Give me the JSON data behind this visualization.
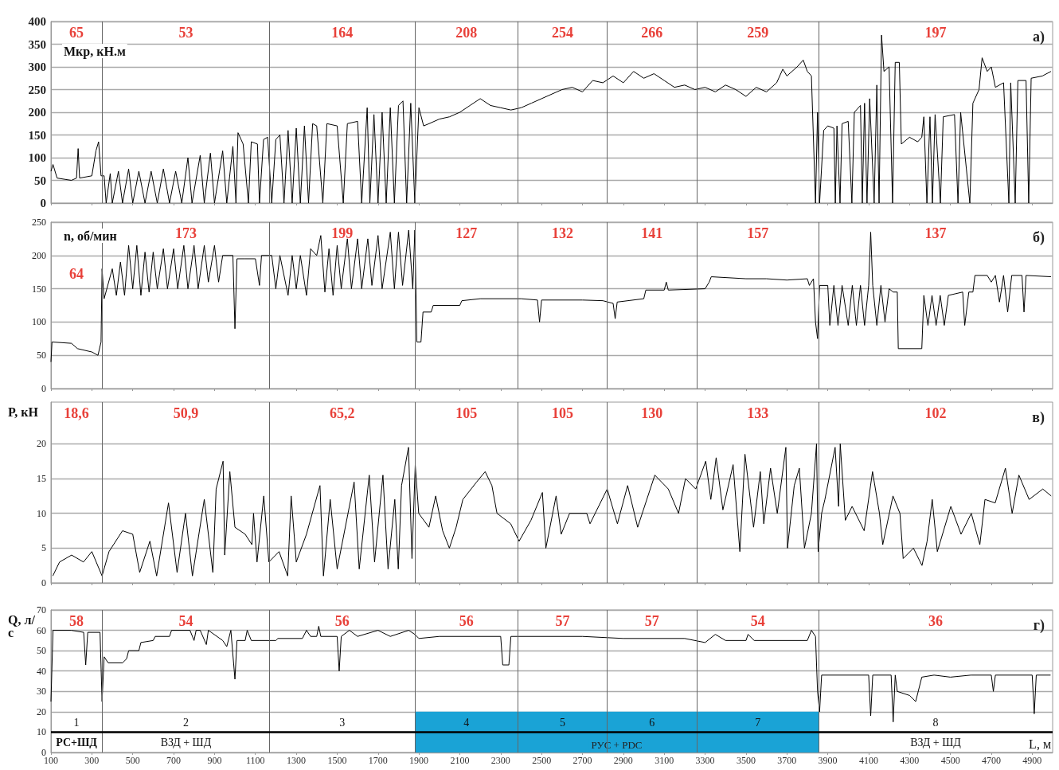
{
  "chart_data": [
    {
      "type": "line",
      "ylabel": "Мкр, кН.м",
      "xlim": [
        100,
        5000
      ],
      "xticks": [
        100,
        300,
        500,
        700,
        900,
        1100,
        1300,
        1500,
        1700,
        1900,
        2100,
        2300,
        2500,
        2700,
        2900,
        3100,
        3300,
        3500,
        3700,
        3900,
        4100,
        4300,
        4500,
        4700,
        4900
      ],
      "ylim": [
        0,
        400
      ],
      "yticks": [
        0,
        50,
        100,
        150,
        200,
        250,
        300,
        350,
        400
      ],
      "grid": "y",
      "tick_labels": "y",
      "x": [
        100,
        110,
        130,
        200,
        225,
        233,
        240,
        300,
        320,
        333,
        345,
        360,
        370,
        390,
        400,
        430,
        450,
        480,
        500,
        530,
        560,
        590,
        620,
        650,
        680,
        710,
        740,
        770,
        790,
        830,
        850,
        880,
        900,
        940,
        960,
        990,
        1005,
        1015,
        1040,
        1066,
        1080,
        1110,
        1120,
        1140,
        1160,
        1180,
        1200,
        1220,
        1240,
        1260,
        1280,
        1300,
        1320,
        1340,
        1360,
        1380,
        1400,
        1430,
        1450,
        1500,
        1530,
        1550,
        1600,
        1620,
        1647,
        1660,
        1680,
        1700,
        1720,
        1740,
        1760,
        1780,
        1800,
        1822,
        1840,
        1860,
        1880,
        1900,
        1923,
        1950,
        2000,
        2050,
        2100,
        2150,
        2200,
        2250,
        2300,
        2350,
        2400,
        2450,
        2500,
        2550,
        2600,
        2650,
        2700,
        2750,
        2800,
        2850,
        2900,
        2950,
        3000,
        3050,
        3100,
        3150,
        3200,
        3250,
        3300,
        3350,
        3400,
        3450,
        3500,
        3550,
        3600,
        3650,
        3680,
        3700,
        3750,
        3780,
        3800,
        3820,
        3840,
        3850,
        3860,
        3880,
        3900,
        3930,
        3937,
        3945,
        3960,
        3970,
        4000,
        4018,
        4030,
        4060,
        4069,
        4080,
        4092,
        4105,
        4127,
        4140,
        4151,
        4163,
        4175,
        4200,
        4217,
        4230,
        4250,
        4260,
        4300,
        4340,
        4360,
        4370,
        4385,
        4400,
        4412,
        4425,
        4451,
        4465,
        4520,
        4537,
        4550,
        4595,
        4610,
        4640,
        4655,
        4680,
        4700,
        4720,
        4760,
        4786,
        4795,
        4817,
        4830,
        4870,
        4883,
        4895,
        4950,
        4992
      ],
      "series": [
        {
          "color": "#000000",
          "values": [
            70,
            85,
            55,
            50,
            55,
            120,
            55,
            60,
            115,
            135,
            60,
            60,
            0,
            65,
            0,
            70,
            0,
            75,
            0,
            70,
            0,
            70,
            0,
            75,
            0,
            70,
            0,
            100,
            0,
            105,
            0,
            110,
            0,
            115,
            0,
            125,
            0,
            155,
            130,
            0,
            135,
            130,
            0,
            140,
            145,
            0,
            140,
            150,
            0,
            160,
            0,
            165,
            0,
            170,
            0,
            175,
            170,
            0,
            175,
            170,
            0,
            175,
            180,
            0,
            210,
            0,
            195,
            0,
            200,
            0,
            210,
            0,
            215,
            225,
            0,
            220,
            0,
            210,
            170,
            175,
            185,
            190,
            200,
            215,
            230,
            215,
            210,
            205,
            210,
            220,
            230,
            240,
            250,
            255,
            245,
            270,
            265,
            280,
            265,
            290,
            275,
            285,
            270,
            255,
            260,
            250,
            255,
            245,
            260,
            250,
            235,
            255,
            245,
            265,
            295,
            280,
            300,
            315,
            290,
            280,
            0,
            200,
            0,
            160,
            170,
            165,
            0,
            170,
            0,
            175,
            180,
            0,
            200,
            215,
            0,
            220,
            0,
            230,
            0,
            260,
            0,
            370,
            290,
            300,
            0,
            310,
            310,
            130,
            145,
            135,
            145,
            190,
            0,
            190,
            0,
            195,
            0,
            190,
            195,
            0,
            200,
            0,
            220,
            250,
            320,
            290,
            300,
            255,
            265,
            0,
            265,
            0,
            270,
            270,
            0,
            275,
            280,
            290
          ]
        }
      ],
      "ref_lines": [
        {
          "axis": "x",
          "value": 350
        },
        {
          "axis": "x",
          "value": 1170
        },
        {
          "axis": "x",
          "value": 1880
        },
        {
          "axis": "x",
          "value": 2385
        },
        {
          "axis": "x",
          "value": 2820
        },
        {
          "axis": "x",
          "value": 3260
        },
        {
          "axis": "x",
          "value": 3855
        }
      ],
      "annotations": [
        "а)",
        "65",
        "53",
        "164",
        "208",
        "254",
        "266",
        "259",
        "197"
      ]
    },
    {
      "type": "line",
      "ylabel": "n, об/мин",
      "xlim": [
        100,
        5000
      ],
      "xticks": [
        100,
        300,
        500,
        700,
        900,
        1100,
        1300,
        1500,
        1700,
        1900,
        2100,
        2300,
        2500,
        2700,
        2900,
        3100,
        3300,
        3500,
        3700,
        3900,
        4100,
        4300,
        4500,
        4700,
        4900
      ],
      "ylim": [
        0,
        250
      ],
      "yticks": [
        0,
        50,
        100,
        150,
        200,
        250
      ],
      "grid": "y",
      "tick_labels": "y",
      "x": [
        100,
        105,
        200,
        230,
        300,
        330,
        345,
        350,
        360,
        400,
        420,
        440,
        460,
        480,
        500,
        520,
        540,
        560,
        580,
        600,
        620,
        650,
        670,
        700,
        720,
        750,
        770,
        800,
        820,
        850,
        870,
        900,
        920,
        940,
        990,
        1000,
        1010,
        1050,
        1100,
        1120,
        1130,
        1180,
        1200,
        1220,
        1260,
        1280,
        1300,
        1320,
        1350,
        1370,
        1400,
        1420,
        1440,
        1460,
        1480,
        1500,
        1520,
        1550,
        1570,
        1600,
        1620,
        1650,
        1670,
        1700,
        1720,
        1760,
        1780,
        1800,
        1820,
        1850,
        1870,
        1880,
        1890,
        1910,
        1920,
        1960,
        1970,
        2100,
        2110,
        2200,
        2400,
        2480,
        2490,
        2500,
        2700,
        2800,
        2850,
        2860,
        2870,
        3000,
        3010,
        3100,
        3110,
        3120,
        3300,
        3320,
        3330,
        3500,
        3600,
        3700,
        3800,
        3810,
        3830,
        3840,
        3850,
        3860,
        3900,
        3910,
        3930,
        3950,
        3970,
        4000,
        4020,
        4040,
        4060,
        4080,
        4100,
        4110,
        4120,
        4140,
        4160,
        4180,
        4200,
        4220,
        4240,
        4245,
        4360,
        4370,
        4390,
        4410,
        4430,
        4450,
        4470,
        4490,
        4560,
        4570,
        4590,
        4610,
        4620,
        4680,
        4700,
        4720,
        4740,
        4760,
        4780,
        4800,
        4850,
        4860,
        4870,
        4992
      ],
      "series": [
        {
          "color": "#000000",
          "values": [
            40,
            70,
            68,
            60,
            55,
            50,
            70,
            180,
            135,
            180,
            140,
            190,
            140,
            215,
            150,
            215,
            140,
            205,
            145,
            205,
            150,
            210,
            150,
            210,
            150,
            215,
            150,
            215,
            150,
            215,
            160,
            215,
            160,
            200,
            200,
            90,
            195,
            195,
            195,
            155,
            200,
            200,
            150,
            200,
            140,
            200,
            150,
            200,
            140,
            210,
            200,
            230,
            145,
            210,
            140,
            215,
            150,
            225,
            150,
            225,
            150,
            225,
            155,
            230,
            150,
            235,
            150,
            235,
            155,
            238,
            150,
            238,
            70,
            70,
            115,
            115,
            125,
            125,
            132,
            135,
            135,
            133,
            100,
            133,
            133,
            132,
            128,
            105,
            130,
            135,
            148,
            148,
            160,
            148,
            150,
            160,
            168,
            165,
            165,
            163,
            165,
            155,
            165,
            100,
            75,
            155,
            155,
            95,
            155,
            95,
            155,
            95,
            155,
            95,
            155,
            95,
            155,
            235,
            155,
            95,
            155,
            100,
            150,
            145,
            145,
            60,
            60,
            140,
            95,
            140,
            95,
            140,
            95,
            140,
            145,
            95,
            145,
            145,
            170,
            170,
            160,
            170,
            130,
            170,
            115,
            170,
            170,
            115,
            170,
            168
          ]
        }
      ],
      "ref_lines": [
        {
          "axis": "x",
          "value": 350
        },
        {
          "axis": "x",
          "value": 1170
        },
        {
          "axis": "x",
          "value": 1880
        },
        {
          "axis": "x",
          "value": 2385
        },
        {
          "axis": "x",
          "value": 2820
        },
        {
          "axis": "x",
          "value": 3260
        },
        {
          "axis": "x",
          "value": 3855
        }
      ],
      "annotations": [
        "б)",
        "64",
        "173",
        "199",
        "127",
        "132",
        "141",
        "157",
        "137"
      ]
    },
    {
      "type": "line",
      "ylabel": "P, кН",
      "xlim": [
        100,
        5000
      ],
      "xticks": [
        100,
        300,
        500,
        700,
        900,
        1100,
        1300,
        1500,
        1700,
        1900,
        2100,
        2300,
        2500,
        2700,
        2900,
        3100,
        3300,
        3500,
        3700,
        3900,
        4100,
        4300,
        4500,
        4700,
        4900
      ],
      "ylim": [
        0,
        26
      ],
      "yticks": [
        0,
        5,
        10,
        15,
        20
      ],
      "grid": "y",
      "tick_labels": "y",
      "x": [
        109,
        142,
        201,
        259,
        300,
        350,
        384,
        450,
        500,
        534,
        584,
        617,
        675,
        717,
        758,
        792,
        850,
        892,
        908,
        942,
        950,
        975,
        1000,
        1050,
        1083,
        1091,
        1108,
        1141,
        1166,
        1216,
        1258,
        1275,
        1300,
        1350,
        1416,
        1433,
        1466,
        1500,
        1583,
        1608,
        1657,
        1683,
        1724,
        1749,
        1782,
        1799,
        1815,
        1849,
        1866,
        1882,
        1899,
        1949,
        1982,
        2016,
        2049,
        2082,
        2115,
        2182,
        2224,
        2257,
        2282,
        2349,
        2390,
        2448,
        2504,
        2521,
        2571,
        2596,
        2637,
        2721,
        2737,
        2821,
        2871,
        2921,
        2970,
        3054,
        3120,
        3170,
        3204,
        3254,
        3303,
        3328,
        3354,
        3387,
        3437,
        3470,
        3495,
        3537,
        3570,
        3587,
        3620,
        3653,
        3695,
        3703,
        3736,
        3761,
        3786,
        3820,
        3845,
        3853,
        3870,
        3886,
        3936,
        3953,
        3961,
        3986,
        4019,
        4078,
        4119,
        4153,
        4169,
        4219,
        4253,
        4269,
        4319,
        4361,
        4386,
        4411,
        4436,
        4502,
        4552,
        4602,
        4644,
        4669,
        4719,
        4769,
        4802,
        4835,
        4885,
        4952,
        4993
      ],
      "series": [
        {
          "color": "#000000",
          "values": [
            1,
            3,
            4,
            3,
            4.5,
            1,
            4.5,
            7.5,
            7,
            1.5,
            6,
            1,
            11.5,
            1.5,
            10,
            1,
            12,
            1.5,
            13.5,
            17.5,
            4,
            16,
            8,
            7,
            5.5,
            10,
            3,
            12.5,
            3,
            4.5,
            1,
            12.5,
            3,
            7,
            14,
            1,
            12,
            2,
            14.5,
            2,
            15.5,
            3,
            15.5,
            2,
            12,
            2,
            14,
            19.5,
            3.5,
            17,
            10,
            8,
            12.5,
            7.5,
            5,
            8,
            12,
            14.5,
            16,
            14,
            10,
            8.5,
            6,
            9,
            13,
            5,
            12.5,
            7,
            10,
            10,
            8.5,
            13.5,
            8.5,
            14,
            8,
            15.5,
            13.5,
            10,
            15,
            13.5,
            17.5,
            12,
            18,
            10.5,
            17,
            4.5,
            18.5,
            8,
            16,
            8.5,
            16.5,
            10,
            19.5,
            5,
            14,
            16.5,
            5,
            10,
            20,
            4.5,
            10,
            12,
            19.5,
            11,
            20,
            9,
            11,
            7.5,
            16,
            10,
            5.5,
            12.5,
            10,
            3.5,
            5,
            2.5,
            6,
            12,
            4.5,
            11,
            7,
            10,
            5.5,
            12,
            11.5,
            16.5,
            10,
            15.5,
            12,
            13.5,
            12.5
          ]
        }
      ],
      "ref_lines": [
        {
          "axis": "x",
          "value": 350
        },
        {
          "axis": "x",
          "value": 1170
        },
        {
          "axis": "x",
          "value": 1880
        },
        {
          "axis": "x",
          "value": 2385
        },
        {
          "axis": "x",
          "value": 2820
        },
        {
          "axis": "x",
          "value": 3260
        },
        {
          "axis": "x",
          "value": 3855
        }
      ],
      "annotations": [
        "в)",
        "18,6",
        "50,9",
        "65,2",
        "105",
        "105",
        "130",
        "133",
        "102"
      ]
    },
    {
      "type": "line",
      "ylabel": "Q, л/с",
      "xlabel": "L, м",
      "xlim": [
        100,
        5000
      ],
      "xticks": [
        100,
        300,
        500,
        700,
        900,
        1100,
        1300,
        1500,
        1700,
        1900,
        2100,
        2300,
        2500,
        2700,
        2900,
        3100,
        3300,
        3500,
        3700,
        3900,
        4100,
        4300,
        4500,
        4700,
        4900
      ],
      "ylim": [
        0,
        70
      ],
      "yticks": [
        0,
        10,
        20,
        30,
        40,
        50,
        60,
        70
      ],
      "grid": "y",
      "x": [
        100,
        110,
        200,
        260,
        270,
        280,
        340,
        350,
        360,
        380,
        450,
        470,
        480,
        530,
        540,
        600,
        610,
        680,
        690,
        780,
        800,
        810,
        830,
        860,
        870,
        940,
        960,
        980,
        1000,
        1010,
        1050,
        1060,
        1080,
        1200,
        1210,
        1330,
        1350,
        1370,
        1400,
        1410,
        1420,
        1500,
        1510,
        1520,
        1560,
        1600,
        1700,
        1760,
        1850,
        1880,
        1900,
        2000,
        2300,
        2310,
        2340,
        2350,
        2700,
        2900,
        3200,
        3300,
        3350,
        3400,
        3500,
        3510,
        3540,
        3800,
        3820,
        3840,
        3850,
        3860,
        3870,
        4100,
        4110,
        4120,
        4210,
        4220,
        4230,
        4240,
        4300,
        4330,
        4360,
        4420,
        4500,
        4600,
        4700,
        4710,
        4720,
        4900,
        4910,
        4920,
        4990
      ],
      "series": [
        {
          "color": "#000000",
          "values": [
            25,
            60,
            60,
            59,
            43,
            59,
            59,
            25,
            47,
            44,
            44,
            46,
            50,
            50,
            54,
            55,
            57,
            57,
            60,
            60,
            55,
            60,
            60,
            53,
            60,
            55,
            52,
            60,
            36,
            55,
            55,
            60,
            55,
            55,
            56,
            56,
            60,
            57,
            57,
            62,
            57,
            57,
            40,
            57,
            60,
            57,
            60,
            57,
            60,
            58,
            56,
            57,
            57,
            43,
            43,
            57,
            57,
            56,
            56,
            54,
            58,
            55,
            55,
            58,
            55,
            55,
            60,
            57,
            30,
            20,
            38,
            38,
            18,
            38,
            38,
            15,
            38,
            30,
            28,
            25,
            37,
            38,
            37,
            38,
            38,
            30,
            38,
            38,
            19,
            38,
            38
          ]
        }
      ],
      "ref_lines": [
        {
          "axis": "x",
          "value": 350
        },
        {
          "axis": "x",
          "value": 1170
        },
        {
          "axis": "x",
          "value": 1880
        },
        {
          "axis": "x",
          "value": 2385
        },
        {
          "axis": "x",
          "value": 2820
        },
        {
          "axis": "x",
          "value": 3260
        },
        {
          "axis": "x",
          "value": 3855
        },
        {
          "axis": "y",
          "value": 10,
          "color": "#000000"
        }
      ],
      "bands": [
        {
          "axis": "x",
          "from": 1880,
          "to": 3855,
          "label": "РУС + PDC",
          "color": "#1aa3d6"
        }
      ],
      "annotations": [
        "г)",
        "58",
        "54",
        "56",
        "56",
        "57",
        "57",
        "54",
        "36",
        "1",
        "2",
        "3",
        "4",
        "5",
        "6",
        "7",
        "8",
        "РС+ШД",
        "ВЗД + ШД",
        "ВЗД + ШД"
      ]
    }
  ]
}
